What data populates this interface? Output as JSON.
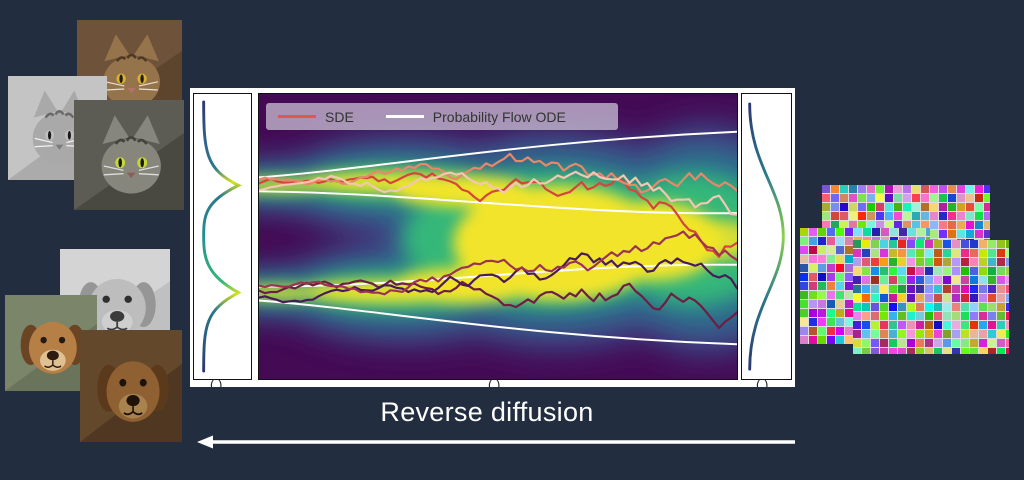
{
  "slide": {
    "background_color": "#222e40"
  },
  "figure": {
    "legend": {
      "sde_label": "SDE",
      "ode_label": "Probability Flow ODE",
      "sde_color": "#e0584a",
      "ode_color": "#ffffff",
      "background": "rgba(197,186,209,0.78)"
    },
    "plot": {
      "type": "diffusion-density",
      "description": "Viridis density heatmap of a diffusion process going from a bimodal data distribution (left marginal) to a broad unimodal prior (right marginal), overlaid with jagged SDE sample paths and smooth white probability-flow ODE trajectories.",
      "colormap": [
        "#440a54",
        "#414487",
        "#2a788e",
        "#35b779",
        "#fde725"
      ],
      "sde_trajectory_colors": [
        "#d6453c",
        "#e8876a",
        "#f2c7b3",
        "#6e1e42",
        "#4a1a57",
        "#9c3352"
      ],
      "ode_color": "#ffffff",
      "left_marginal": "bimodal",
      "right_marginal": "unimodal"
    },
    "caption_marks": [
      "( )",
      "( )",
      "( )"
    ]
  },
  "reverse_arrow": {
    "label": "Reverse diffusion",
    "direction": "left",
    "color": "#ffffff"
  },
  "left_images": {
    "cats": [
      "tabby-cat-photo",
      "gray-cat-photo",
      "green-eyed-cat-photo"
    ],
    "dogs": [
      "gray-puppy-photo",
      "beagle-puppy-photo",
      "brown-dog-photo"
    ]
  },
  "right_images": {
    "type": "random-noise-tiles",
    "count": 3
  }
}
